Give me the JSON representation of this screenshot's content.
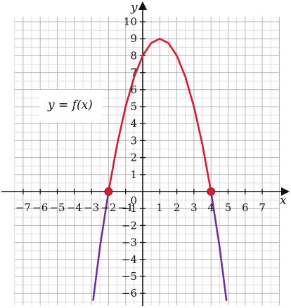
{
  "chart_data": {
    "type": "line",
    "xlabel": "x",
    "ylabel": "y",
    "xlim": [
      -7.5,
      8
    ],
    "ylim": [
      -6.7,
      10.3
    ],
    "grid": true,
    "function_label": "y = f(x)",
    "x_ticks": [
      -7,
      -6,
      -5,
      -4,
      -3,
      -2,
      -1,
      0,
      1,
      2,
      3,
      4,
      5,
      6,
      7
    ],
    "y_ticks": [
      -6,
      -5,
      -4,
      -3,
      -2,
      -1,
      1,
      2,
      3,
      4,
      5,
      6,
      7,
      8,
      9,
      10
    ],
    "origin_label": "0",
    "series": [
      {
        "color": "#e0182d",
        "x": [
          -2,
          -1.5,
          -1,
          -0.5,
          0,
          0.5,
          1,
          1.5,
          2,
          2.5,
          3,
          3.5,
          4
        ],
        "y": [
          0,
          2.75,
          5,
          6.75,
          8,
          8.75,
          9,
          8.75,
          8,
          6.75,
          5,
          2.75,
          0
        ]
      },
      {
        "color": "#7030a0",
        "x": [
          -2.9,
          -2.5,
          -2
        ],
        "y": [
          -6.39,
          -3.25,
          0
        ]
      },
      {
        "color": "#7030a0",
        "x": [
          4,
          4.5,
          4.9
        ],
        "y": [
          0,
          -3.25,
          -6.39
        ]
      }
    ],
    "points": [
      {
        "x": -2,
        "y": 0,
        "color": "#e0182d"
      },
      {
        "x": 4,
        "y": 0,
        "color": "#e0182d"
      }
    ]
  }
}
